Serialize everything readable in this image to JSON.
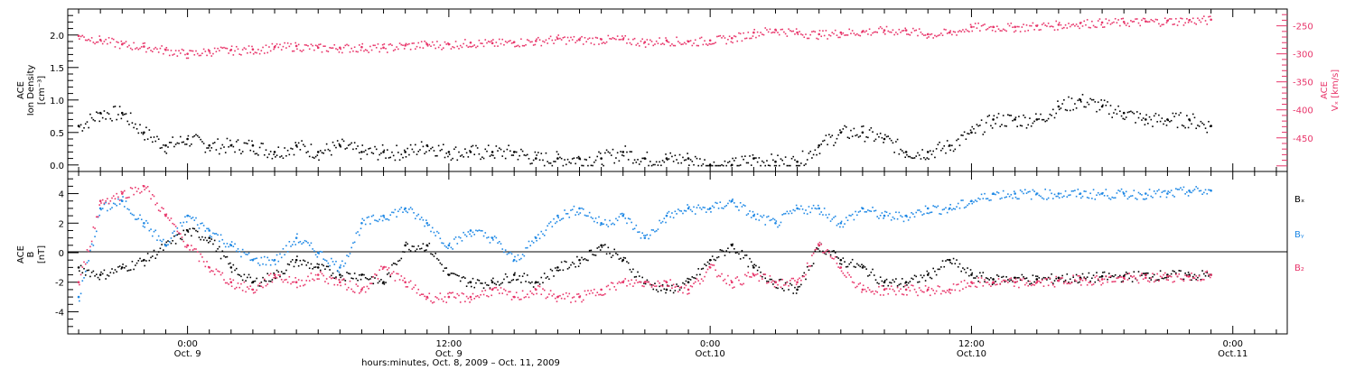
{
  "colors": {
    "black": "#000000",
    "blue": "#1e88e5",
    "red": "#e8356a"
  },
  "x_axis": {
    "time_range_hours": [
      -5.5,
      50.5
    ],
    "ticks": [
      {
        "t": 0,
        "time": "0:00",
        "date": "Oct. 9"
      },
      {
        "t": 12,
        "time": "12:00",
        "date": "Oct. 9"
      },
      {
        "t": 24,
        "time": "0:00",
        "date": "Oct.10"
      },
      {
        "t": 36,
        "time": "12:00",
        "date": "Oct.10"
      },
      {
        "t": 48,
        "time": "0:00",
        "date": "Oct.11"
      }
    ],
    "label": "hours:minutes, Oct.  8, 2009 – Oct. 11, 2009"
  },
  "panels": {
    "top": {
      "ylabel_left": [
        "ACE",
        "Ion Density",
        "[cm⁻³]"
      ],
      "ylabel_right": [
        "ACE",
        "Vₓ [km/s]"
      ],
      "left_axis": {
        "ylim": [
          -0.1,
          2.4
        ],
        "ticks": [
          "0.0",
          "0.5",
          "1.0",
          "1.5",
          "2.0"
        ]
      },
      "right_axis": {
        "ylim": [
          -510,
          -220
        ],
        "ticks": [
          "-250",
          "-300",
          "-350",
          "-400",
          "-450"
        ]
      }
    },
    "bottom": {
      "ylabel_left": [
        "ACE",
        "B",
        "[nT]"
      ],
      "ylim": [
        -5.5,
        5.5
      ],
      "ticks": [
        "4",
        "2",
        "0",
        "-2",
        "-4"
      ],
      "legend": [
        {
          "label": "Bₓ",
          "color": "black"
        },
        {
          "label": "Bᵧ",
          "color": "blue"
        },
        {
          "label": "B₂",
          "color": "red"
        }
      ]
    }
  },
  "chart_data": [
    {
      "type": "scatter",
      "title": "",
      "xlabel": "hours:minutes, Oct.  8, 2009 – Oct. 11, 2009",
      "ylabel": "ACE Ion Density [cm⁻³]",
      "ylabel_right": "ACE Vₓ [km/s]",
      "x_units": "hours since Oct. 9 0:00",
      "ylim": [
        -0.1,
        2.4
      ],
      "ylim_right": [
        -510,
        -220
      ],
      "grid": false,
      "series": [
        {
          "name": "Ion Density",
          "color": "black",
          "axis": "left",
          "x": [
            -5,
            -4,
            -3,
            -2,
            -1,
            0,
            1,
            2,
            3,
            4,
            5,
            6,
            7,
            8,
            9,
            10,
            11,
            12,
            13,
            14,
            15,
            16,
            17,
            18,
            19,
            20,
            21,
            22,
            23,
            24,
            25,
            26,
            27,
            28,
            29,
            30,
            31,
            32,
            33,
            34,
            35,
            36,
            37,
            38,
            39,
            40,
            41,
            42,
            43,
            44,
            45,
            46,
            47
          ],
          "y": [
            0.6,
            0.8,
            0.8,
            0.5,
            0.3,
            0.4,
            0.3,
            0.3,
            0.3,
            0.2,
            0.3,
            0.2,
            0.3,
            0.2,
            0.2,
            0.2,
            0.3,
            0.2,
            0.2,
            0.2,
            0.2,
            0.1,
            0.1,
            0.1,
            0.1,
            0.2,
            0.1,
            0.1,
            0.1,
            0.0,
            0.0,
            0.1,
            0.05,
            0.05,
            0.3,
            0.5,
            0.5,
            0.4,
            0.2,
            0.2,
            0.3,
            0.5,
            0.7,
            0.7,
            0.7,
            0.9,
            1.0,
            0.9,
            0.8,
            0.7,
            0.7,
            0.7,
            0.6
          ]
        },
        {
          "name": "Vx",
          "color": "red",
          "axis": "right",
          "x": [
            -5,
            -4,
            -3,
            -2,
            -1,
            0,
            1,
            2,
            3,
            4,
            5,
            6,
            7,
            8,
            9,
            10,
            11,
            12,
            13,
            14,
            15,
            16,
            17,
            18,
            19,
            20,
            21,
            22,
            23,
            24,
            25,
            26,
            27,
            28,
            29,
            30,
            31,
            32,
            33,
            34,
            35,
            36,
            37,
            38,
            39,
            40,
            41,
            42,
            43,
            44,
            45,
            46,
            47
          ],
          "y": [
            -268,
            -275,
            -283,
            -287,
            -293,
            -300,
            -295,
            -293,
            -292,
            -288,
            -286,
            -289,
            -289,
            -288,
            -289,
            -285,
            -283,
            -283,
            -280,
            -281,
            -279,
            -277,
            -273,
            -275,
            -274,
            -274,
            -279,
            -276,
            -278,
            -276,
            -272,
            -262,
            -257,
            -262,
            -265,
            -262,
            -260,
            -258,
            -258,
            -265,
            -262,
            -252,
            -252,
            -252,
            -250,
            -248,
            -245,
            -244,
            -243,
            -242,
            -241,
            -240,
            -239
          ]
        }
      ]
    },
    {
      "type": "scatter",
      "title": "",
      "xlabel": "hours:minutes, Oct.  8, 2009 – Oct. 11, 2009",
      "ylabel": "ACE B [nT]",
      "x_units": "hours since Oct. 9 0:00",
      "ylim": [
        -5.5,
        5.5
      ],
      "grid": false,
      "series": [
        {
          "name": "Bₓ",
          "color": "black",
          "x": [
            -5,
            -4,
            -3,
            -2,
            -1,
            0,
            1,
            2,
            3,
            4,
            5,
            6,
            7,
            8,
            9,
            10,
            11,
            12,
            13,
            14,
            15,
            16,
            17,
            18,
            19,
            20,
            21,
            22,
            23,
            24,
            25,
            26,
            27,
            28,
            29,
            30,
            31,
            32,
            33,
            34,
            35,
            36,
            37,
            38,
            39,
            40,
            41,
            42,
            43,
            44,
            45,
            46,
            47
          ],
          "y": [
            -1.0,
            -1.5,
            -1.0,
            -0.5,
            0.5,
            1.5,
            1.0,
            -1.0,
            -2.0,
            -1.5,
            -0.5,
            -1.0,
            -1.5,
            -1.5,
            -2.0,
            0.5,
            0.5,
            -1.5,
            -2.0,
            -2.0,
            -1.5,
            -2.0,
            -1.0,
            -0.5,
            0.5,
            -0.5,
            -2.0,
            -2.5,
            -2.0,
            -0.5,
            0.5,
            -1.0,
            -2.0,
            -2.5,
            0.5,
            -0.5,
            -1.0,
            -2.0,
            -2.0,
            -1.5,
            -0.5,
            -1.5,
            -1.8,
            -1.7,
            -1.8,
            -1.7,
            -1.7,
            -1.6,
            -1.6,
            -1.5,
            -1.5,
            -1.5,
            -1.5
          ]
        },
        {
          "name": "Bᵧ",
          "color": "blue",
          "x": [
            -5,
            -4,
            -3,
            -2,
            -1,
            0,
            1,
            2,
            3,
            4,
            5,
            6,
            7,
            8,
            9,
            10,
            11,
            12,
            13,
            14,
            15,
            16,
            17,
            18,
            19,
            20,
            21,
            22,
            23,
            24,
            25,
            26,
            27,
            28,
            29,
            30,
            31,
            32,
            33,
            34,
            35,
            36,
            37,
            38,
            39,
            40,
            41,
            42,
            43,
            44,
            45,
            46,
            47
          ],
          "y": [
            -3.0,
            3.0,
            3.5,
            2.0,
            0.5,
            2.5,
            1.5,
            0.5,
            -0.5,
            -0.5,
            1.0,
            0.0,
            -1.0,
            2.0,
            2.5,
            3.0,
            2.0,
            0.5,
            1.5,
            1.0,
            -0.5,
            1.0,
            2.5,
            3.0,
            2.0,
            2.5,
            1.0,
            2.5,
            3.0,
            3.0,
            3.5,
            2.5,
            2.0,
            3.0,
            3.0,
            2.0,
            3.0,
            2.5,
            2.5,
            3.0,
            3.0,
            3.5,
            4.0,
            4.0,
            4.0,
            4.0,
            4.0,
            4.0,
            4.0,
            4.0,
            4.0,
            4.2,
            4.2
          ]
        },
        {
          "name": "B₂",
          "color": "red",
          "x": [
            -5,
            -4,
            -3,
            -2,
            -1,
            0,
            1,
            2,
            3,
            4,
            5,
            6,
            7,
            8,
            9,
            10,
            11,
            12,
            13,
            14,
            15,
            16,
            17,
            18,
            19,
            20,
            21,
            22,
            23,
            24,
            25,
            26,
            27,
            28,
            29,
            30,
            31,
            32,
            33,
            34,
            35,
            36,
            37,
            38,
            39,
            40,
            41,
            42,
            43,
            44,
            45,
            46,
            47
          ],
          "y": [
            -2.0,
            3.5,
            4.0,
            4.5,
            2.5,
            0.5,
            -1.0,
            -2.0,
            -2.5,
            -1.5,
            -2.0,
            -1.5,
            -2.0,
            -2.5,
            -1.0,
            -2.0,
            -3.0,
            -3.0,
            -3.0,
            -2.5,
            -3.0,
            -2.5,
            -3.0,
            -3.0,
            -2.5,
            -2.0,
            -2.0,
            -2.0,
            -2.5,
            -1.0,
            -2.0,
            -1.5,
            -2.0,
            -2.0,
            0.5,
            -1.0,
            -2.5,
            -2.5,
            -2.5,
            -2.5,
            -2.5,
            -2.0,
            -2.0,
            -2.0,
            -2.0,
            -1.9,
            -1.8,
            -1.8,
            -1.7,
            -1.7,
            -1.6,
            -1.6,
            -1.5
          ]
        }
      ]
    }
  ]
}
